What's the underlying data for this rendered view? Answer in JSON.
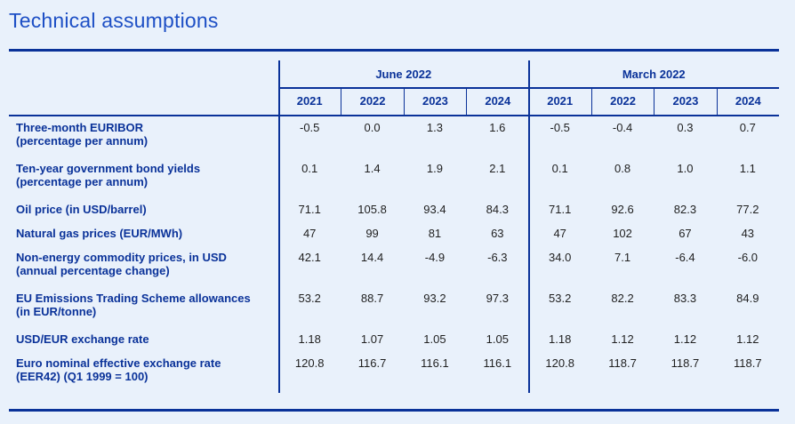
{
  "page": {
    "title": "Technical assumptions"
  },
  "colors": {
    "background": "#e9f1fb",
    "accent_navy": "#0a3299",
    "title_blue": "#1d4fc5",
    "value_text": "#1f1f1f"
  },
  "table": {
    "column_groups": [
      {
        "label": "June 2022",
        "years": [
          "2021",
          "2022",
          "2023",
          "2024"
        ]
      },
      {
        "label": "March 2022",
        "years": [
          "2021",
          "2022",
          "2023",
          "2024"
        ]
      }
    ],
    "rows": [
      {
        "label": "Three-month EURIBOR",
        "sublabel": "(percentage per annum)",
        "values": {
          "june_2022": [
            "-0.5",
            "0.0",
            "1.3",
            "1.6"
          ],
          "march_2022": [
            "-0.5",
            "-0.4",
            "0.3",
            "0.7"
          ]
        }
      },
      {
        "label": "Ten-year government bond yields",
        "sublabel": "(percentage per annum)",
        "values": {
          "june_2022": [
            "0.1",
            "1.4",
            "1.9",
            "2.1"
          ],
          "march_2022": [
            "0.1",
            "0.8",
            "1.0",
            "1.1"
          ]
        }
      },
      {
        "label": "Oil price (in USD/barrel)",
        "sublabel": "",
        "values": {
          "june_2022": [
            "71.1",
            "105.8",
            "93.4",
            "84.3"
          ],
          "march_2022": [
            "71.1",
            "92.6",
            "82.3",
            "77.2"
          ]
        }
      },
      {
        "label": "Natural gas prices (EUR/MWh)",
        "sublabel": "",
        "values": {
          "june_2022": [
            "47",
            "99",
            "81",
            "63"
          ],
          "march_2022": [
            "47",
            "102",
            "67",
            "43"
          ]
        }
      },
      {
        "label": "Non-energy commodity prices, in USD",
        "sublabel": "(annual percentage change)",
        "values": {
          "june_2022": [
            "42.1",
            "14.4",
            "-4.9",
            "-6.3"
          ],
          "march_2022": [
            "34.0",
            "7.1",
            "-6.4",
            "-6.0"
          ]
        }
      },
      {
        "label": "EU Emissions Trading Scheme allowances",
        "sublabel": "(in EUR/tonne)",
        "values": {
          "june_2022": [
            "53.2",
            "88.7",
            "93.2",
            "97.3"
          ],
          "march_2022": [
            "53.2",
            "82.2",
            "83.3",
            "84.9"
          ]
        }
      },
      {
        "label": "USD/EUR exchange rate",
        "sublabel": "",
        "values": {
          "june_2022": [
            "1.18",
            "1.07",
            "1.05",
            "1.05"
          ],
          "march_2022": [
            "1.18",
            "1.12",
            "1.12",
            "1.12"
          ]
        }
      },
      {
        "label": "Euro nominal effective exchange rate",
        "sublabel": "(EER42) (Q1 1999 = 100)",
        "values": {
          "june_2022": [
            "120.8",
            "116.7",
            "116.1",
            "116.1"
          ],
          "march_2022": [
            "120.8",
            "118.7",
            "118.7",
            "118.7"
          ]
        }
      }
    ]
  }
}
